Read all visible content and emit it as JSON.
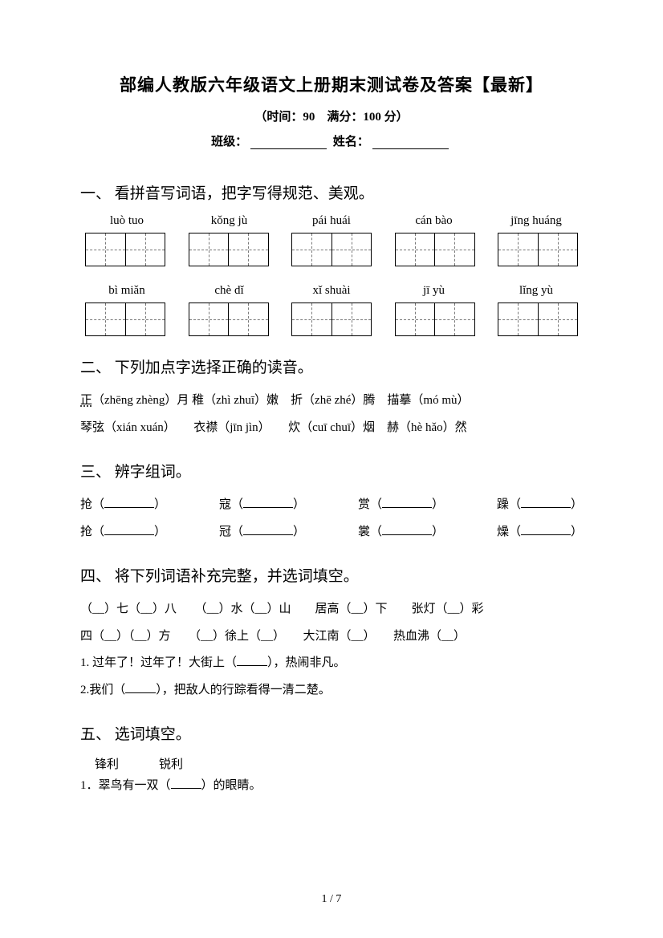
{
  "header": {
    "title": "部编人教版六年级语文上册期末测试卷及答案【最新】",
    "subtitle": "（时间：90　满分：100 分）",
    "class_label": "班级：",
    "name_label": "姓名："
  },
  "q1": {
    "heading": "一、 看拼音写词语，把字写得规范、美观。",
    "row1": [
      "luò tuo",
      "kǒng  jù",
      "pái huái",
      "cán  bào",
      "jīng huáng"
    ],
    "row2": [
      "bì miǎn",
      "chè dǐ",
      "xǐ shuài",
      "jī yù",
      "lǐng  yù"
    ]
  },
  "q2": {
    "heading": "二、 下列加点字选择正确的读音。",
    "line1_a": "正",
    "line1_b": "（zhēng zhèng）月 稚（zhì zhuī）嫩　折（zhē zhé）腾　描摹（mó mù）",
    "line2": "琴弦（xián xuán）　　衣襟（jīn jìn）　　炊（cuī chuī）烟　赫（hè hǎo）然"
  },
  "q3": {
    "heading": "三、 辨字组词。",
    "row1": [
      "抢（",
      "寇（",
      "赏（",
      "躁（"
    ],
    "row2": [
      "抢（",
      "冠（",
      "裳（",
      "燥（"
    ]
  },
  "q4": {
    "heading": "四、 将下列词语补充完整，并选词填空。",
    "line1": "（__）七（__）八　　（__）水（__）山　　居高（__）下　　张灯（__）彩",
    "line2": "四（__）（__）方　　（__）徐上（__）　　大江南（__）　　热血沸（__）",
    "line3_pre": "1. 过年了！过年了！大街上（",
    "line3_post": "），热闹非凡。",
    "line4_pre": "2.我们（",
    "line4_post": "），把敌人的行踪看得一清二楚。"
  },
  "q5": {
    "heading": "五、 选词填空。",
    "word1": "锋利",
    "word2": "锐利",
    "line1_pre": "1．翠鸟有一双（",
    "line1_post": "）的眼睛。"
  },
  "footer": {
    "page": "1 / 7"
  }
}
